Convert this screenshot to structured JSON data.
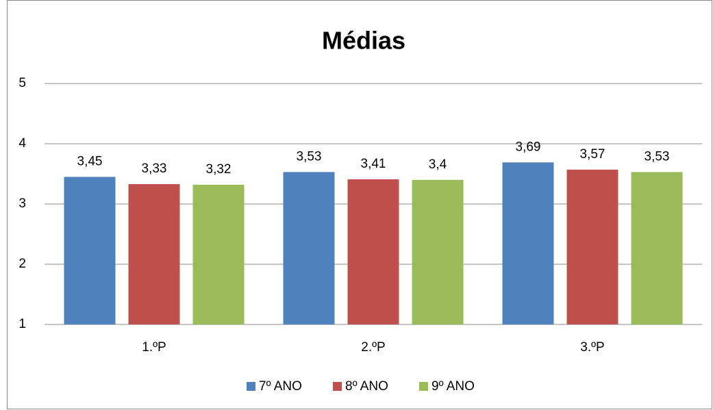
{
  "chart_data": {
    "type": "bar",
    "title": "Médias",
    "categories": [
      "1.ºP",
      "2.ºP",
      "3.ºP"
    ],
    "series": [
      {
        "name": "7º ANO",
        "color": "#4f81bd",
        "values": [
          3.45,
          3.53,
          3.69
        ],
        "value_labels": [
          "3,45",
          "3,53",
          "3,69"
        ]
      },
      {
        "name": "8º ANO",
        "color": "#c0504d",
        "values": [
          3.33,
          3.41,
          3.57
        ],
        "value_labels": [
          "3,33",
          "3,41",
          "3,57"
        ]
      },
      {
        "name": "9º ANO",
        "color": "#9bbb59",
        "values": [
          3.32,
          3.4,
          3.53
        ],
        "value_labels": [
          "3,32",
          "3,4",
          "3,53"
        ]
      }
    ],
    "ylim": [
      1,
      5
    ],
    "yticks": [
      1,
      2,
      3,
      4,
      5
    ],
    "grid": true,
    "legend": "bottom"
  }
}
